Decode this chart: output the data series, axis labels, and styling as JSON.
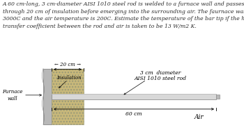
{
  "text_lines": [
    "A 60 cm-long, 3 cm-diameter AISI 1010 steel rod is welded to a furnace wall and passes",
    "through 20 cm of insulation before emerging into the surrounding air. The faurnace wall is at",
    "3000C and the air temperature is 200C. Estimate the temperature of the bar tip if the heat",
    "transfer coefficient between the rod and air is taken to be 13 W/m2 K."
  ],
  "text_bg": "#ffffff",
  "text_color": "#2b2b2b",
  "diagram_bg": "#c9aa80",
  "wall_facecolor": "#b8b8b8",
  "wall_edgecolor": "#888888",
  "insulation_facecolor": "#c8b87a",
  "insulation_edgecolor": "#999977",
  "rod_facecolor": "#d8d8d8",
  "rod_edgecolor": "#909090",
  "tip_facecolor": "#b8b8b8"
}
